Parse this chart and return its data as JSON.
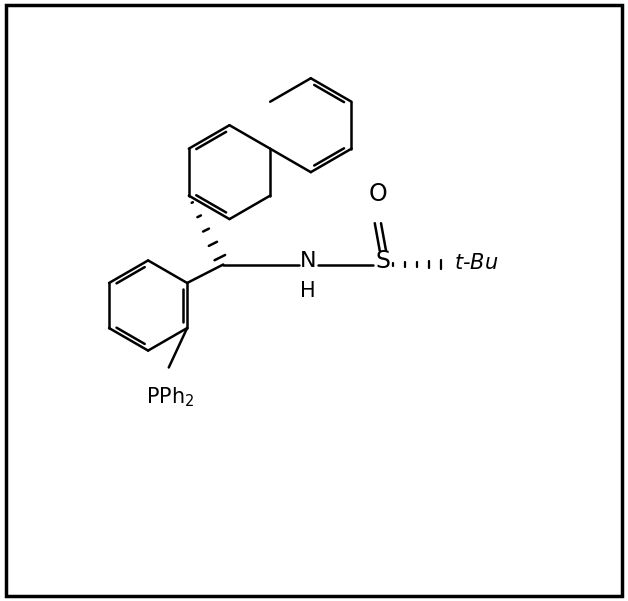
{
  "figsize": [
    6.28,
    6.01
  ],
  "dpi": 100,
  "background": "#ffffff",
  "bond_color": "#000000",
  "bond_width": 1.8,
  "font_size": 14,
  "xlim": [
    0,
    10
  ],
  "ylim": [
    0,
    9.6
  ]
}
